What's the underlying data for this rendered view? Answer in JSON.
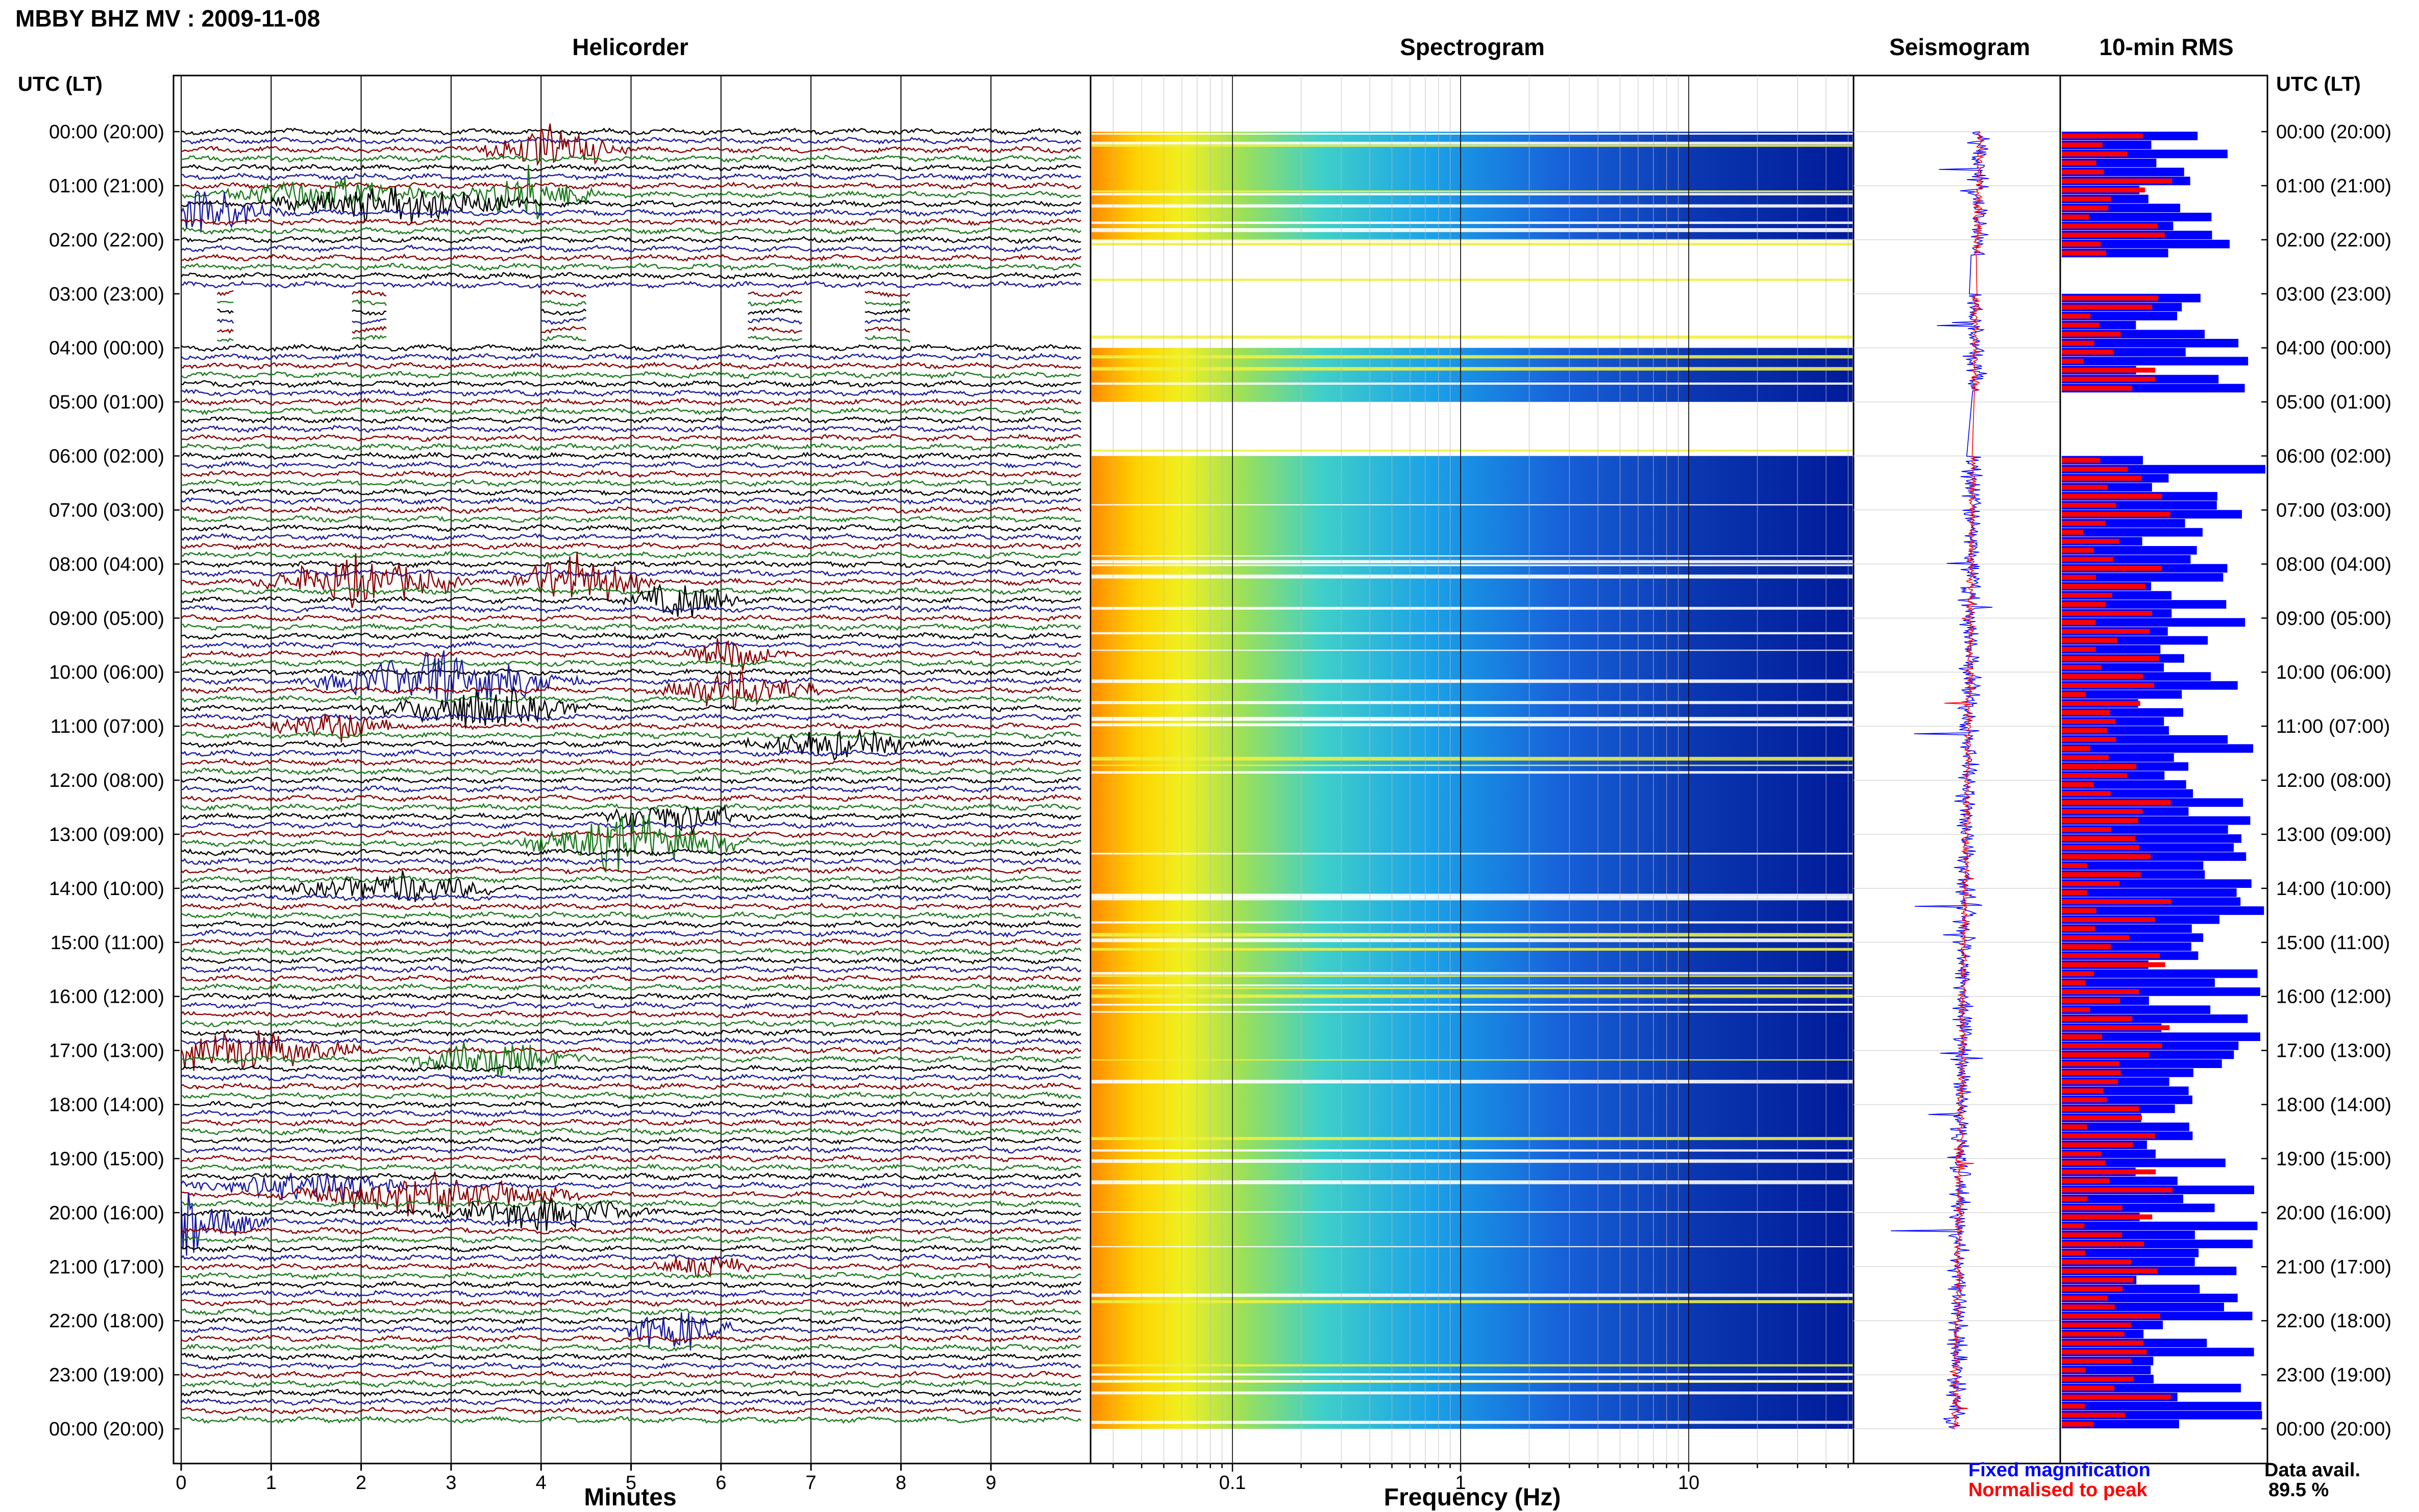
{
  "chart_data": [
    {
      "type": "line",
      "panel": "helicorder",
      "title": "Helicorder",
      "xlabel": "Minutes",
      "xlim": [
        0,
        10
      ],
      "x_ticks": [
        0,
        1,
        2,
        3,
        4,
        5,
        6,
        7,
        8,
        9
      ],
      "trace_colors_cycle": [
        "#000000",
        "#1a1aa0",
        "#8b0000",
        "#1a7a1a"
      ],
      "trace_interval_minutes": 10,
      "gap_rows_approx": [
        "03:00–04:00 UTC (sparse data)"
      ]
    },
    {
      "type": "heatmap",
      "panel": "spectrogram",
      "title": "Spectrogram",
      "xlabel": "Frequency (Hz)",
      "x_scale": "log",
      "x_ticks": [
        "0.1",
        "1",
        "10"
      ],
      "colormap": "jet",
      "no_data_bands_utc": [
        "02:00–04:00",
        "05:00–06:00"
      ]
    },
    {
      "type": "line",
      "panel": "seismogram",
      "title": "Seismogram",
      "series": [
        {
          "name": "Fixed magnification",
          "color": "#0000ff"
        },
        {
          "name": "Normalised to peak",
          "color": "#ff0000"
        }
      ]
    },
    {
      "type": "bar",
      "panel": "rms",
      "title": "10-min RMS",
      "orientation": "horizontal",
      "series_colors": [
        "#0000ff",
        "#ff0000"
      ]
    }
  ],
  "figure_title": "MBBY BHZ MV : 2009-11-08",
  "time_axis_label": "UTC (LT)",
  "time_labels": [
    "00:00 (20:00)",
    "01:00 (21:00)",
    "02:00 (22:00)",
    "03:00 (23:00)",
    "04:00 (00:00)",
    "05:00 (01:00)",
    "06:00 (02:00)",
    "07:00 (03:00)",
    "08:00 (04:00)",
    "09:00 (05:00)",
    "10:00 (06:00)",
    "11:00 (07:00)",
    "12:00 (08:00)",
    "13:00 (09:00)",
    "14:00 (10:00)",
    "15:00 (11:00)",
    "16:00 (12:00)",
    "17:00 (13:00)",
    "18:00 (14:00)",
    "19:00 (15:00)",
    "20:00 (16:00)",
    "21:00 (17:00)",
    "22:00 (18:00)",
    "23:00 (19:00)",
    "00:00 (20:00)"
  ],
  "legend": {
    "fixed": "Fixed magnification",
    "normalised": "Normalised to peak",
    "fixed_color": "#0000ff",
    "normalised_color": "#ff0000"
  },
  "availability": {
    "label": "Data avail.",
    "value": "89.5 %"
  }
}
